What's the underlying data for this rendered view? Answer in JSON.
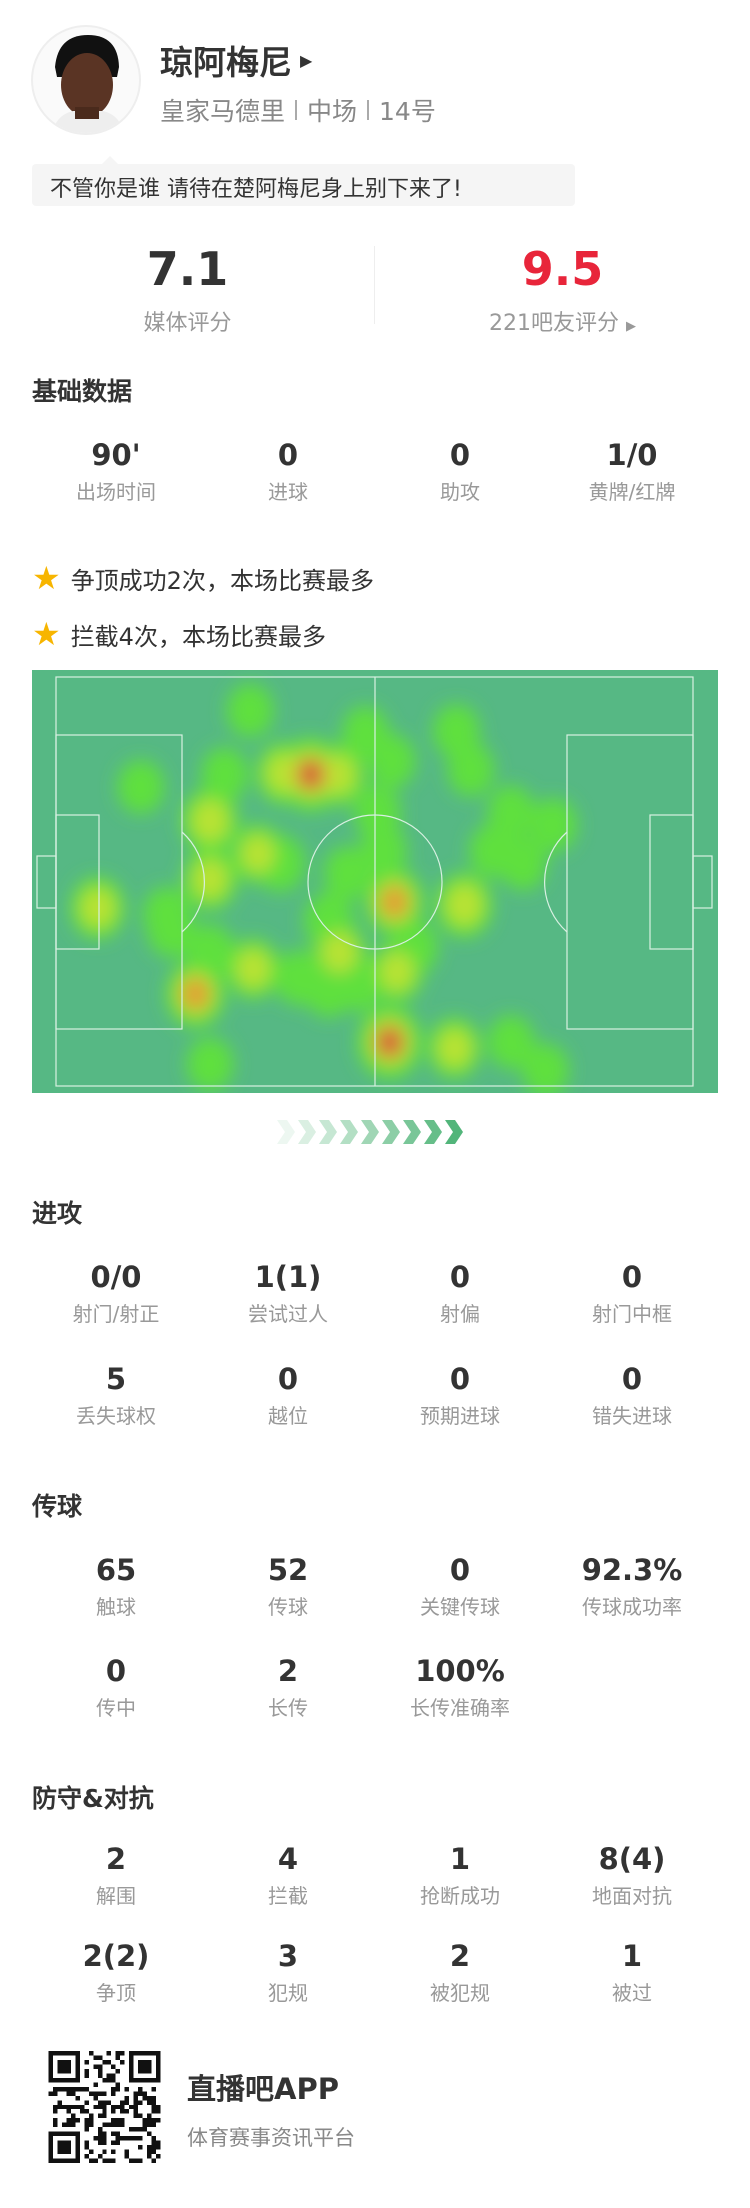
{
  "player": {
    "name": "琼阿梅尼",
    "team": "皇家马德里",
    "position": "中场",
    "number": "14号",
    "quote": "不管你是谁 请待在楚阿梅尼身上别下来了!"
  },
  "ratings": {
    "media": {
      "value": "7.1",
      "label": "媒体评分"
    },
    "fans": {
      "value": "9.5",
      "label": "221吧友评分",
      "color": "#e8253a"
    }
  },
  "basic": {
    "title": "基础数据",
    "items": [
      {
        "v": "90'",
        "l": "出场时间"
      },
      {
        "v": "0",
        "l": "进球"
      },
      {
        "v": "0",
        "l": "助攻"
      },
      {
        "v": "1/0",
        "l": "黄牌/红牌"
      }
    ]
  },
  "highlights": [
    "争顶成功2次，本场比赛最多",
    "拦截4次，本场比赛最多"
  ],
  "heatmap": {
    "pitch_color": "#56b884",
    "points": [
      [
        32,
        5.6,
        0.3
      ],
      [
        51,
        9.3,
        0.3
      ],
      [
        66,
        9,
        0.3
      ],
      [
        55.4,
        14,
        0.3
      ],
      [
        68.4,
        15.4,
        0.3
      ],
      [
        42,
        16.2,
        1
      ],
      [
        37.5,
        16,
        0.6
      ],
      [
        46.5,
        16.3,
        0.6
      ],
      [
        27.8,
        16.2,
        0.3
      ],
      [
        14,
        18.3,
        0.3
      ],
      [
        25.4,
        23.9,
        0.7
      ],
      [
        53,
        22.5,
        0.3
      ],
      [
        75,
        22.5,
        0.3
      ],
      [
        82,
        24.6,
        0.3
      ],
      [
        33.3,
        29.4,
        0.5
      ],
      [
        37,
        31,
        0.4
      ],
      [
        54,
        28.9,
        0.3
      ],
      [
        72,
        28.9,
        0.3
      ],
      [
        77,
        31,
        0.3
      ],
      [
        25.4,
        33.6,
        0.6
      ],
      [
        48,
        32.6,
        0.3
      ],
      [
        6.9,
        38.4,
        0.6
      ],
      [
        18.3,
        39.5,
        0.35
      ],
      [
        55.8,
        37.4,
        0.8
      ],
      [
        67.3,
        37.9,
        0.7
      ],
      [
        45,
        40.5,
        0.4
      ],
      [
        46.7,
        45.8,
        0.6
      ],
      [
        32.5,
        48.5,
        0.55
      ],
      [
        25.4,
        45.8,
        0.4
      ],
      [
        56.2,
        49,
        0.55
      ],
      [
        59,
        45,
        0.35
      ],
      [
        40,
        50,
        0.35
      ],
      [
        45,
        52,
        0.35
      ],
      [
        23,
        52.7,
        0.8
      ],
      [
        50,
        51,
        0.35
      ],
      [
        55,
        60.7,
        1
      ],
      [
        65.7,
        61.7,
        0.55
      ],
      [
        75,
        60.7,
        0.3
      ],
      [
        80.7,
        65.4,
        0.3
      ],
      [
        25.4,
        64.4,
        0.3
      ],
      [
        19,
        42,
        0.35
      ]
    ]
  },
  "attack": {
    "title": "进攻",
    "items": [
      {
        "v": "0/0",
        "l": "射门/射正"
      },
      {
        "v": "1(1)",
        "l": "尝试过人"
      },
      {
        "v": "0",
        "l": "射偏"
      },
      {
        "v": "0",
        "l": "射门中框"
      },
      {
        "v": "5",
        "l": "丢失球权"
      },
      {
        "v": "0",
        "l": "越位"
      },
      {
        "v": "0",
        "l": "预期进球"
      },
      {
        "v": "0",
        "l": "错失进球"
      }
    ]
  },
  "passing": {
    "title": "传球",
    "items": [
      {
        "v": "65",
        "l": "触球"
      },
      {
        "v": "52",
        "l": "传球"
      },
      {
        "v": "0",
        "l": "关键传球"
      },
      {
        "v": "92.3%",
        "l": "传球成功率"
      },
      {
        "v": "0",
        "l": "传中"
      },
      {
        "v": "2",
        "l": "长传"
      },
      {
        "v": "100%",
        "l": "长传准确率"
      }
    ]
  },
  "defense": {
    "title": "防守&对抗",
    "items": [
      {
        "v": "2",
        "l": "解围"
      },
      {
        "v": "4",
        "l": "拦截"
      },
      {
        "v": "1",
        "l": "抢断成功"
      },
      {
        "v": "8(4)",
        "l": "地面对抗"
      },
      {
        "v": "2(2)",
        "l": "争顶"
      },
      {
        "v": "3",
        "l": "犯规"
      },
      {
        "v": "2",
        "l": "被犯规"
      },
      {
        "v": "1",
        "l": "被过"
      }
    ]
  },
  "footer": {
    "app": "直播吧APP",
    "tagline": "体育赛事资讯平台"
  }
}
